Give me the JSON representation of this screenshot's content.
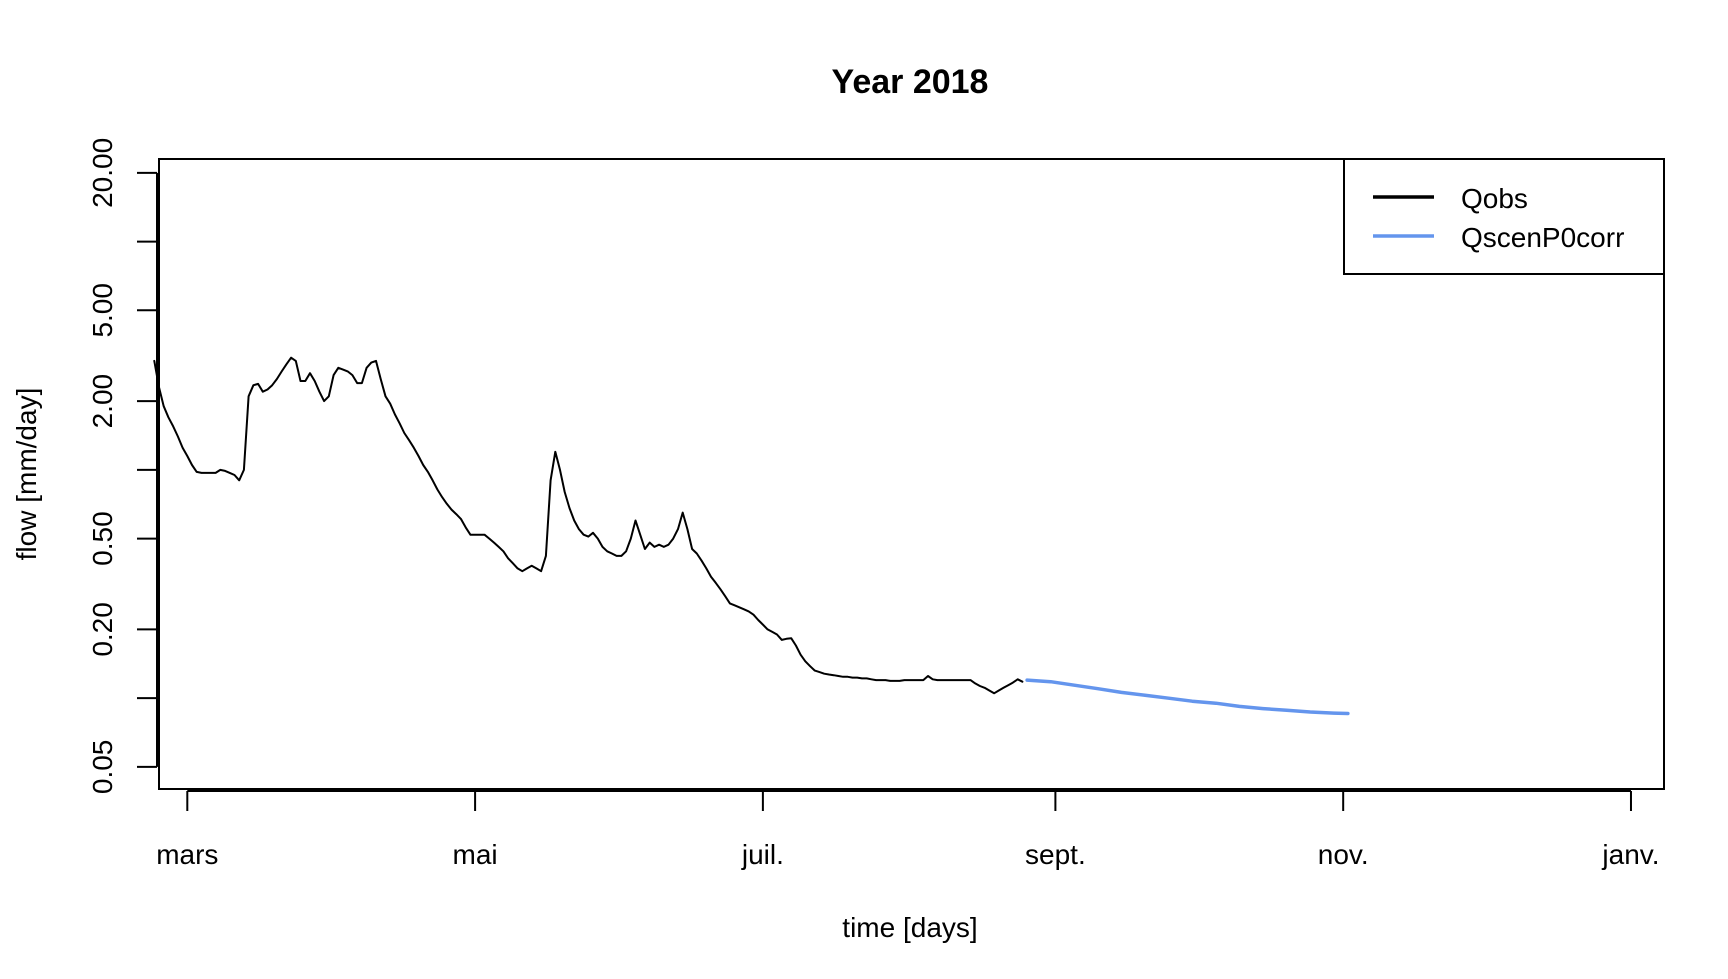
{
  "chart_data": {
    "type": "line",
    "title": "Year 2018",
    "xlabel": "time [days]",
    "ylabel": "flow [mm/day]",
    "y_scale": "log",
    "ylim": [
      0.04,
      23
    ],
    "y_ticks": [
      0.05,
      0.1,
      0.2,
      0.5,
      1,
      2,
      5,
      10,
      20
    ],
    "y_tick_labels": [
      {
        "value": 0.05,
        "label": "0.05"
      },
      {
        "value": 0.2,
        "label": "0.20"
      },
      {
        "value": 0.5,
        "label": "0.50"
      },
      {
        "value": 2,
        "label": "2.00"
      },
      {
        "value": 5,
        "label": "5.00"
      },
      {
        "value": 20,
        "label": "20.00"
      }
    ],
    "x_unit": "day of year 2018",
    "xlim": [
      54,
      373
    ],
    "x_ticks": [
      {
        "value": 60,
        "label": "mars"
      },
      {
        "value": 121,
        "label": "mai"
      },
      {
        "value": 182,
        "label": "juil."
      },
      {
        "value": 244,
        "label": "sept."
      },
      {
        "value": 305,
        "label": "nov."
      },
      {
        "value": 366,
        "label": "janv."
      }
    ],
    "legend": {
      "position": "top-right",
      "entries": [
        {
          "name": "Qobs",
          "color": "#000000"
        },
        {
          "name": "QscenP0corr",
          "color": "#6495ED"
        }
      ]
    },
    "series": [
      {
        "name": "Qobs",
        "color": "#000000",
        "points": [
          [
            53,
            3.0
          ],
          [
            54,
            2.3
          ],
          [
            55,
            1.9
          ],
          [
            56,
            1.7
          ],
          [
            57,
            1.55
          ],
          [
            58,
            1.4
          ],
          [
            59,
            1.25
          ],
          [
            60,
            1.15
          ],
          [
            61,
            1.05
          ],
          [
            62,
            0.98
          ],
          [
            63,
            0.97
          ],
          [
            64,
            0.97
          ],
          [
            65,
            0.97
          ],
          [
            66,
            0.97
          ],
          [
            67,
            1.0
          ],
          [
            68,
            0.99
          ],
          [
            69,
            0.97
          ],
          [
            70,
            0.95
          ],
          [
            71,
            0.9
          ],
          [
            72,
            1.0
          ],
          [
            73,
            2.1
          ],
          [
            74,
            2.35
          ],
          [
            75,
            2.38
          ],
          [
            76,
            2.2
          ],
          [
            77,
            2.25
          ],
          [
            78,
            2.35
          ],
          [
            79,
            2.5
          ],
          [
            80,
            2.7
          ],
          [
            81,
            2.9
          ],
          [
            82,
            3.1
          ],
          [
            83,
            3.0
          ],
          [
            84,
            2.45
          ],
          [
            85,
            2.45
          ],
          [
            86,
            2.65
          ],
          [
            87,
            2.45
          ],
          [
            88,
            2.2
          ],
          [
            89,
            2.0
          ],
          [
            90,
            2.1
          ],
          [
            91,
            2.6
          ],
          [
            92,
            2.8
          ],
          [
            93,
            2.75
          ],
          [
            94,
            2.7
          ],
          [
            95,
            2.6
          ],
          [
            96,
            2.4
          ],
          [
            97,
            2.4
          ],
          [
            98,
            2.8
          ],
          [
            99,
            2.95
          ],
          [
            100,
            3.0
          ],
          [
            101,
            2.5
          ],
          [
            102,
            2.1
          ],
          [
            103,
            1.95
          ],
          [
            104,
            1.75
          ],
          [
            105,
            1.6
          ],
          [
            106,
            1.45
          ],
          [
            107,
            1.35
          ],
          [
            108,
            1.25
          ],
          [
            109,
            1.15
          ],
          [
            110,
            1.05
          ],
          [
            111,
            0.98
          ],
          [
            112,
            0.9
          ],
          [
            113,
            0.82
          ],
          [
            114,
            0.76
          ],
          [
            115,
            0.71
          ],
          [
            116,
            0.67
          ],
          [
            117,
            0.64
          ],
          [
            118,
            0.61
          ],
          [
            119,
            0.56
          ],
          [
            120,
            0.52
          ],
          [
            121,
            0.52
          ],
          [
            122,
            0.52
          ],
          [
            123,
            0.52
          ],
          [
            124,
            0.5
          ],
          [
            125,
            0.48
          ],
          [
            126,
            0.46
          ],
          [
            127,
            0.44
          ],
          [
            128,
            0.41
          ],
          [
            129,
            0.39
          ],
          [
            130,
            0.37
          ],
          [
            131,
            0.36
          ],
          [
            132,
            0.37
          ],
          [
            133,
            0.38
          ],
          [
            134,
            0.37
          ],
          [
            135,
            0.36
          ],
          [
            136,
            0.42
          ],
          [
            137,
            0.9
          ],
          [
            138,
            1.2
          ],
          [
            139,
            1.0
          ],
          [
            140,
            0.8
          ],
          [
            141,
            0.68
          ],
          [
            142,
            0.6
          ],
          [
            143,
            0.55
          ],
          [
            144,
            0.52
          ],
          [
            145,
            0.51
          ],
          [
            146,
            0.53
          ],
          [
            147,
            0.5
          ],
          [
            148,
            0.46
          ],
          [
            149,
            0.44
          ],
          [
            150,
            0.43
          ],
          [
            151,
            0.42
          ],
          [
            152,
            0.42
          ],
          [
            153,
            0.44
          ],
          [
            154,
            0.5
          ],
          [
            155,
            0.6
          ],
          [
            156,
            0.52
          ],
          [
            157,
            0.45
          ],
          [
            158,
            0.48
          ],
          [
            159,
            0.46
          ],
          [
            160,
            0.47
          ],
          [
            161,
            0.46
          ],
          [
            162,
            0.47
          ],
          [
            163,
            0.5
          ],
          [
            164,
            0.55
          ],
          [
            165,
            0.65
          ],
          [
            166,
            0.55
          ],
          [
            167,
            0.45
          ],
          [
            168,
            0.43
          ],
          [
            169,
            0.4
          ],
          [
            170,
            0.37
          ],
          [
            171,
            0.34
          ],
          [
            172,
            0.32
          ],
          [
            173,
            0.3
          ],
          [
            174,
            0.28
          ],
          [
            175,
            0.26
          ],
          [
            176,
            0.255
          ],
          [
            177,
            0.25
          ],
          [
            178,
            0.245
          ],
          [
            179,
            0.24
          ],
          [
            180,
            0.232
          ],
          [
            181,
            0.22
          ],
          [
            182,
            0.21
          ],
          [
            183,
            0.2
          ],
          [
            184,
            0.195
          ],
          [
            185,
            0.19
          ],
          [
            186,
            0.18
          ],
          [
            187,
            0.182
          ],
          [
            188,
            0.183
          ],
          [
            189,
            0.17
          ],
          [
            190,
            0.155
          ],
          [
            191,
            0.145
          ],
          [
            192,
            0.138
          ],
          [
            193,
            0.132
          ],
          [
            194,
            0.13
          ],
          [
            195,
            0.128
          ],
          [
            196,
            0.127
          ],
          [
            197,
            0.126
          ],
          [
            198,
            0.125
          ],
          [
            199,
            0.124
          ],
          [
            200,
            0.124
          ],
          [
            201,
            0.123
          ],
          [
            202,
            0.123
          ],
          [
            203,
            0.122
          ],
          [
            204,
            0.122
          ],
          [
            205,
            0.121
          ],
          [
            206,
            0.12
          ],
          [
            207,
            0.12
          ],
          [
            208,
            0.12
          ],
          [
            209,
            0.119
          ],
          [
            210,
            0.119
          ],
          [
            211,
            0.119
          ],
          [
            212,
            0.12
          ],
          [
            213,
            0.12
          ],
          [
            214,
            0.12
          ],
          [
            215,
            0.12
          ],
          [
            216,
            0.12
          ],
          [
            217,
            0.125
          ],
          [
            218,
            0.121
          ],
          [
            219,
            0.12
          ],
          [
            220,
            0.12
          ],
          [
            221,
            0.12
          ],
          [
            222,
            0.12
          ],
          [
            223,
            0.12
          ],
          [
            224,
            0.12
          ],
          [
            225,
            0.12
          ],
          [
            226,
            0.12
          ],
          [
            227,
            0.116
          ],
          [
            228,
            0.113
          ],
          [
            229,
            0.111
          ],
          [
            230,
            0.108
          ],
          [
            231,
            0.105
          ],
          [
            232,
            0.108
          ],
          [
            233,
            0.111
          ],
          [
            234,
            0.114
          ],
          [
            235,
            0.117
          ],
          [
            236,
            0.121
          ],
          [
            237,
            0.118
          ]
        ]
      },
      {
        "name": "QscenP0corr",
        "color": "#6495ED",
        "points": [
          [
            238,
            0.12
          ],
          [
            243,
            0.118
          ],
          [
            248,
            0.114
          ],
          [
            253,
            0.11
          ],
          [
            258,
            0.106
          ],
          [
            263,
            0.103
          ],
          [
            268,
            0.1
          ],
          [
            273,
            0.097
          ],
          [
            278,
            0.095
          ],
          [
            283,
            0.092
          ],
          [
            288,
            0.09
          ],
          [
            293,
            0.0885
          ],
          [
            298,
            0.087
          ],
          [
            303,
            0.086
          ],
          [
            306,
            0.0857
          ]
        ]
      }
    ]
  }
}
